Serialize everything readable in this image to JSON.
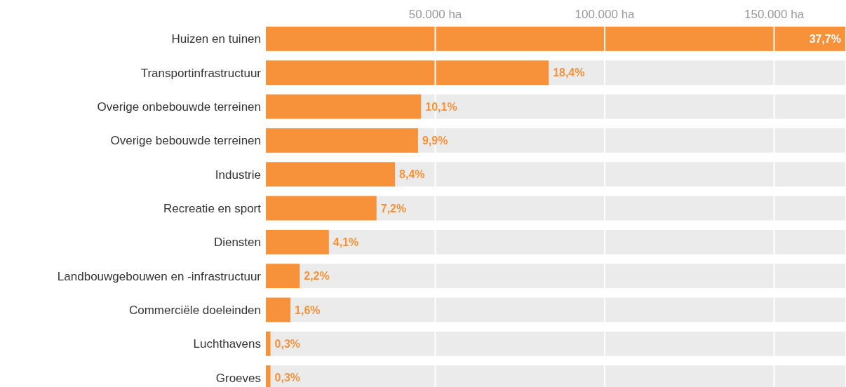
{
  "chart_data": {
    "type": "bar",
    "orientation": "horizontal",
    "categories": [
      "Huizen en tuinen",
      "Transportinfrastructuur",
      "Overige onbebouwde terreinen",
      "Overige bebouwde terreinen",
      "Industrie",
      "Recreatie en sport",
      "Diensten",
      "Landbouwgebouwen en -infrastructuur",
      "Commerciële doeleinden",
      "Luchthavens",
      "Groeves"
    ],
    "values": [
      37.7,
      18.4,
      10.1,
      9.9,
      8.4,
      7.2,
      4.1,
      2.2,
      1.6,
      0.3,
      0.3
    ],
    "value_labels": [
      "37,7%",
      "18,4%",
      "10,1%",
      "9,9%",
      "8,4%",
      "7,2%",
      "4,1%",
      "2,2%",
      "1,6%",
      "0,3%",
      "0,3%"
    ],
    "color": "#f7923a",
    "xlim": [
      0,
      37.7
    ],
    "x2lim": [
      0,
      171000
    ],
    "x2ticks": [
      {
        "value": 50000,
        "label": "50.000 ha"
      },
      {
        "value": 100000,
        "label": "100.000 ha"
      },
      {
        "value": 150000,
        "label": "150.000 ha"
      }
    ],
    "grid": "x"
  }
}
